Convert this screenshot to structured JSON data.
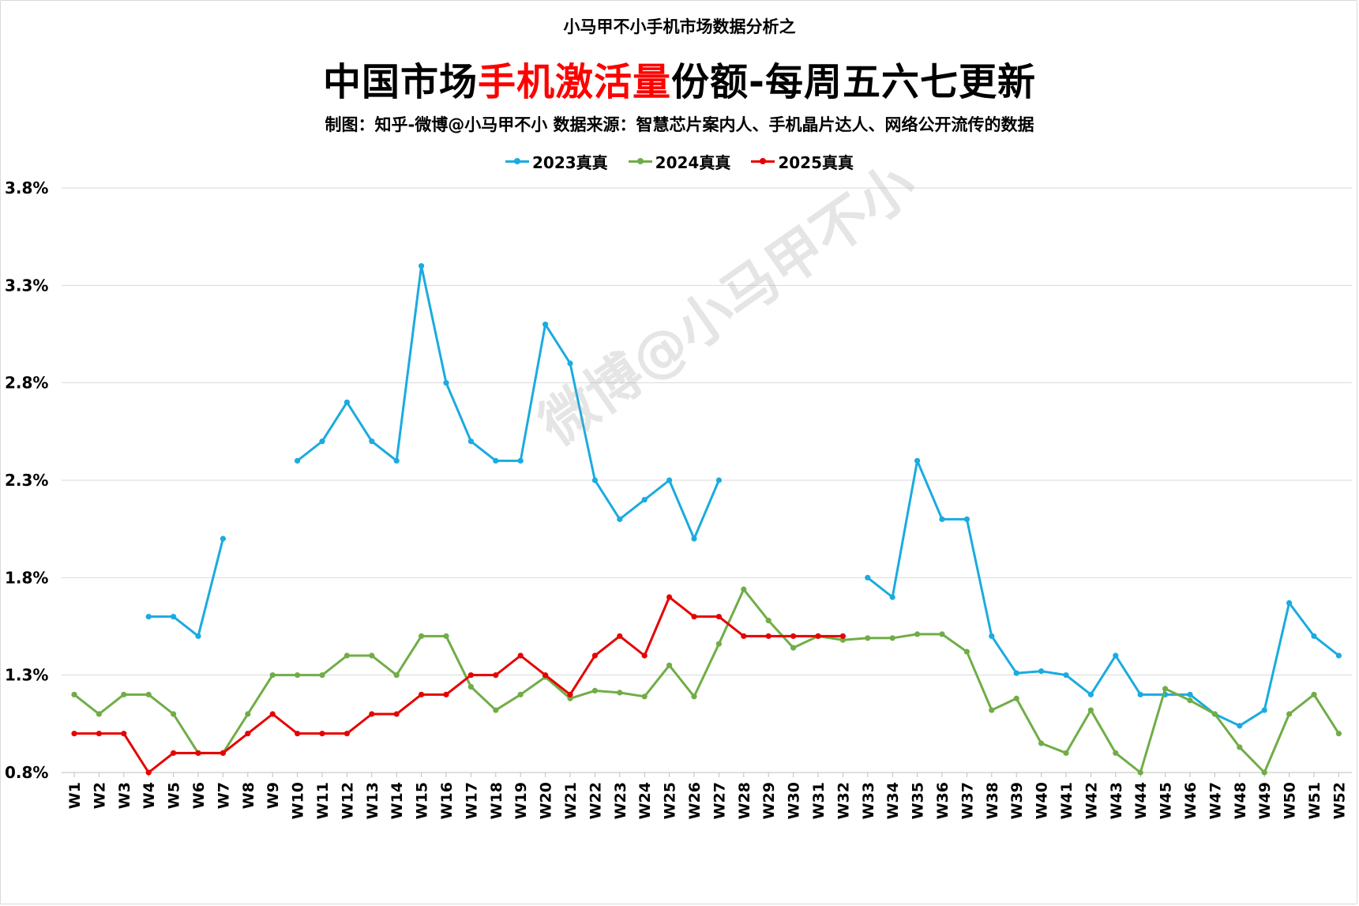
{
  "header": {
    "pretitle": "小马甲不小手机市场数据分析之",
    "title_part1": "中国市场",
    "title_highlight": "手机激活量",
    "title_part2": "份额-每周五六七更新",
    "subtitle": "制图：知乎-微博@小马甲不小   数据来源：智慧芯片案内人、手机晶片达人、网络公开流传的数据"
  },
  "watermark": "微博@小马甲不小",
  "colors": {
    "title_highlight": "#ff0000",
    "grid": "#d9d9d9"
  },
  "chart_data": {
    "type": "line",
    "title": "中国市场手机激活量份额-每周五六七更新",
    "xlabel": "",
    "ylabel": "",
    "ylim": [
      0.8,
      3.8
    ],
    "yticks": [
      "0.8%",
      "1.3%",
      "1.8%",
      "2.3%",
      "2.8%",
      "3.3%",
      "3.8%"
    ],
    "grid": true,
    "legend_position": "top-center",
    "categories": [
      "W1",
      "W2",
      "W3",
      "W4",
      "W5",
      "W6",
      "W7",
      "W8",
      "W9",
      "W10",
      "W11",
      "W12",
      "W13",
      "W14",
      "W15",
      "W16",
      "W17",
      "W18",
      "W19",
      "W20",
      "W21",
      "W22",
      "W23",
      "W24",
      "W25",
      "W26",
      "W27",
      "W28",
      "W29",
      "W30",
      "W31",
      "W32",
      "W33",
      "W34",
      "W35",
      "W36",
      "W37",
      "W38",
      "W39",
      "W40",
      "W41",
      "W42",
      "W43",
      "W44",
      "W45",
      "W46",
      "W47",
      "W48",
      "W49",
      "W50",
      "W51",
      "W52"
    ],
    "series": [
      {
        "name": "2023真真",
        "color": "#1aabe0",
        "values": [
          null,
          null,
          null,
          1.6,
          1.6,
          1.5,
          2.0,
          null,
          null,
          2.4,
          2.5,
          2.7,
          2.5,
          2.4,
          3.4,
          2.8,
          2.5,
          2.4,
          2.4,
          3.1,
          2.9,
          2.3,
          2.1,
          2.2,
          2.3,
          2.0,
          2.3,
          null,
          null,
          null,
          null,
          null,
          1.8,
          1.7,
          2.4,
          2.1,
          2.1,
          1.5,
          1.31,
          1.32,
          1.3,
          1.2,
          1.4,
          1.2,
          1.2,
          1.2,
          1.1,
          1.04,
          1.12,
          1.67,
          1.5,
          1.4
        ]
      },
      {
        "name": "2024真真",
        "color": "#70ad47",
        "values": [
          1.2,
          1.1,
          1.2,
          1.2,
          1.1,
          0.9,
          0.9,
          1.1,
          1.3,
          1.3,
          1.3,
          1.4,
          1.4,
          1.3,
          1.5,
          1.5,
          1.24,
          1.12,
          1.2,
          1.29,
          1.18,
          1.22,
          1.21,
          1.19,
          1.35,
          1.19,
          1.46,
          1.74,
          1.58,
          1.44,
          1.5,
          1.48,
          1.49,
          1.49,
          1.51,
          1.51,
          1.42,
          1.12,
          1.18,
          0.95,
          0.9,
          1.12,
          0.9,
          0.8,
          1.23,
          1.17,
          1.1,
          0.93,
          0.8,
          1.1,
          1.2,
          1.0
        ]
      },
      {
        "name": "2025真真",
        "color": "#e60000",
        "values": [
          1.0,
          1.0,
          1.0,
          0.8,
          0.9,
          0.9,
          0.9,
          1.0,
          1.1,
          1.0,
          1.0,
          1.0,
          1.1,
          1.1,
          1.2,
          1.2,
          1.3,
          1.3,
          1.4,
          1.3,
          1.2,
          1.4,
          1.5,
          1.4,
          1.7,
          1.6,
          1.6,
          1.5,
          1.5,
          1.5,
          1.5,
          1.5,
          null,
          null,
          null,
          null,
          null,
          null,
          null,
          null,
          null,
          null,
          null,
          null,
          null,
          null,
          null,
          null,
          null,
          null,
          null,
          null
        ]
      }
    ]
  }
}
